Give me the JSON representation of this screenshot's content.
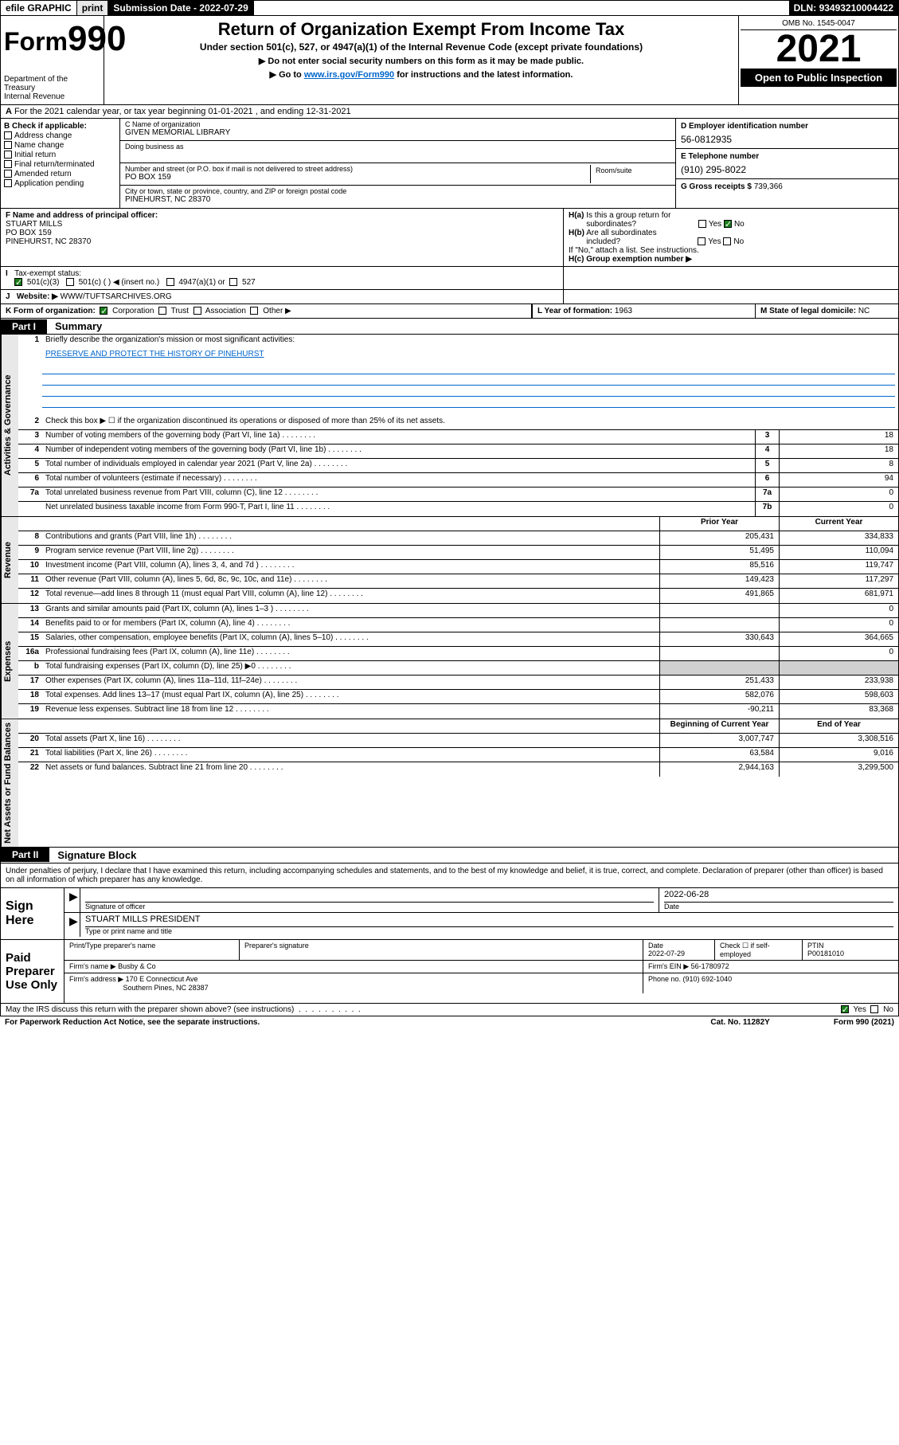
{
  "topbar": {
    "efile": "efile GRAPHIC",
    "print": "print",
    "sub_label": "Submission Date - ",
    "sub_date": "2022-07-29",
    "dln_label": "DLN: ",
    "dln": "93493210004422"
  },
  "header": {
    "form_label": "Form",
    "form_num": "990",
    "dept": "Department of the Treasury\nInternal Revenue Service",
    "title": "Return of Organization Exempt From Income Tax",
    "sub1": "Under section 501(c), 527, or 4947(a)(1) of the Internal Revenue Code (except private foundations)",
    "sub2": "▶ Do not enter social security numbers on this form as it may be made public.",
    "sub3_pre": "▶ Go to ",
    "sub3_link": "www.irs.gov/Form990",
    "sub3_post": " for instructions and the latest information.",
    "omb": "OMB No. 1545-0047",
    "year": "2021",
    "inspect": "Open to Public Inspection"
  },
  "row_a": {
    "text": "For the 2021 calendar year, or tax year beginning 01-01-2021   , and ending 12-31-2021",
    "prefix": "A"
  },
  "col_b": {
    "label": "B Check if applicable:",
    "items": [
      "Address change",
      "Name change",
      "Initial return",
      "Final return/terminated",
      "Amended return",
      "Application pending"
    ]
  },
  "col_c": {
    "name_label": "C Name of organization",
    "name": "GIVEN MEMORIAL LIBRARY",
    "dba_label": "Doing business as",
    "dba": "",
    "addr_label": "Number and street (or P.O. box if mail is not delivered to street address)",
    "room_label": "Room/suite",
    "addr": "PO BOX 159",
    "city_label": "City or town, state or province, country, and ZIP or foreign postal code",
    "city": "PINEHURST, NC  28370"
  },
  "col_d": {
    "d_label": "D Employer identification number",
    "d_val": "56-0812935",
    "e_label": "E Telephone number",
    "e_val": "(910) 295-8022",
    "g_label": "G Gross receipts $ ",
    "g_val": "739,366"
  },
  "row_f": {
    "f_label": "F Name and address of principal officer:",
    "f_name": "STUART MILLS",
    "f_addr": "PO BOX 159",
    "f_city": "PINEHURST, NC  28370",
    "ha_label": "H(a)  Is this a group return for subordinates?",
    "ha_yes": "Yes",
    "ha_no": "No",
    "hb_label": "H(b)  Are all subordinates included?",
    "hb_yes": "Yes",
    "hb_no": "No",
    "hb_note": "If \"No,\" attach a list. See instructions.",
    "hc_label": "H(c)  Group exemption number ▶"
  },
  "row_i": {
    "label": "Tax-exempt status:",
    "opt1": "501(c)(3)",
    "opt2": "501(c) (  ) ◀ (insert no.)",
    "opt3": "4947(a)(1) or",
    "opt4": "527"
  },
  "row_j": {
    "label": "Website: ▶",
    "val": "WWW/TUFTSARCHIVES.ORG"
  },
  "row_k": {
    "label": "K Form of organization:",
    "opts": [
      "Corporation",
      "Trust",
      "Association",
      "Other ▶"
    ],
    "l_label": "L Year of formation: ",
    "l_val": "1963",
    "m_label": "M State of legal domicile: ",
    "m_val": "NC"
  },
  "part1": {
    "tab": "Part I",
    "title": "Summary"
  },
  "summary": {
    "line1_label": "Briefly describe the organization's mission or most significant activities:",
    "line1_val": "PRESERVE AND PROTECT THE HISTORY OF PINEHURST",
    "line2": "Check this box ▶ ☐  if the organization discontinued its operations or disposed of more than 25% of its net assets.",
    "rows_gov": [
      {
        "n": "3",
        "d": "Number of voting members of the governing body (Part VI, line 1a)",
        "box": "3",
        "v": "18"
      },
      {
        "n": "4",
        "d": "Number of independent voting members of the governing body (Part VI, line 1b)",
        "box": "4",
        "v": "18"
      },
      {
        "n": "5",
        "d": "Total number of individuals employed in calendar year 2021 (Part V, line 2a)",
        "box": "5",
        "v": "8"
      },
      {
        "n": "6",
        "d": "Total number of volunteers (estimate if necessary)",
        "box": "6",
        "v": "94"
      },
      {
        "n": "7a",
        "d": "Total unrelated business revenue from Part VIII, column (C), line 12",
        "box": "7a",
        "v": "0"
      },
      {
        "n": "",
        "d": "Net unrelated business taxable income from Form 990-T, Part I, line 11",
        "box": "7b",
        "v": "0"
      }
    ],
    "col_headers": {
      "prior": "Prior Year",
      "current": "Current Year"
    },
    "rows_rev": [
      {
        "n": "8",
        "d": "Contributions and grants (Part VIII, line 1h)",
        "p": "205,431",
        "c": "334,833"
      },
      {
        "n": "9",
        "d": "Program service revenue (Part VIII, line 2g)",
        "p": "51,495",
        "c": "110,094"
      },
      {
        "n": "10",
        "d": "Investment income (Part VIII, column (A), lines 3, 4, and 7d )",
        "p": "85,516",
        "c": "119,747"
      },
      {
        "n": "11",
        "d": "Other revenue (Part VIII, column (A), lines 5, 6d, 8c, 9c, 10c, and 11e)",
        "p": "149,423",
        "c": "117,297"
      },
      {
        "n": "12",
        "d": "Total revenue—add lines 8 through 11 (must equal Part VIII, column (A), line 12)",
        "p": "491,865",
        "c": "681,971"
      }
    ],
    "rows_exp": [
      {
        "n": "13",
        "d": "Grants and similar amounts paid (Part IX, column (A), lines 1–3 )",
        "p": "",
        "c": "0"
      },
      {
        "n": "14",
        "d": "Benefits paid to or for members (Part IX, column (A), line 4)",
        "p": "",
        "c": "0"
      },
      {
        "n": "15",
        "d": "Salaries, other compensation, employee benefits (Part IX, column (A), lines 5–10)",
        "p": "330,643",
        "c": "364,665"
      },
      {
        "n": "16a",
        "d": "Professional fundraising fees (Part IX, column (A), line 11e)",
        "p": "",
        "c": "0"
      },
      {
        "n": "b",
        "d": "Total fundraising expenses (Part IX, column (D), line 25) ▶0",
        "p": "shade",
        "c": "shade"
      },
      {
        "n": "17",
        "d": "Other expenses (Part IX, column (A), lines 11a–11d, 11f–24e)",
        "p": "251,433",
        "c": "233,938"
      },
      {
        "n": "18",
        "d": "Total expenses. Add lines 13–17 (must equal Part IX, column (A), line 25)",
        "p": "582,076",
        "c": "598,603"
      },
      {
        "n": "19",
        "d": "Revenue less expenses. Subtract line 18 from line 12",
        "p": "-90,211",
        "c": "83,368"
      }
    ],
    "col_headers2": {
      "begin": "Beginning of Current Year",
      "end": "End of Year"
    },
    "rows_net": [
      {
        "n": "20",
        "d": "Total assets (Part X, line 16)",
        "p": "3,007,747",
        "c": "3,308,516"
      },
      {
        "n": "21",
        "d": "Total liabilities (Part X, line 26)",
        "p": "63,584",
        "c": "9,016"
      },
      {
        "n": "22",
        "d": "Net assets or fund balances. Subtract line 21 from line 20",
        "p": "2,944,163",
        "c": "3,299,500"
      }
    ]
  },
  "vtabs": {
    "gov": "Activities & Governance",
    "rev": "Revenue",
    "exp": "Expenses",
    "net": "Net Assets or Fund Balances"
  },
  "part2": {
    "tab": "Part II",
    "title": "Signature Block",
    "penalty": "Under penalties of perjury, I declare that I have examined this return, including accompanying schedules and statements, and to the best of my knowledge and belief, it is true, correct, and complete. Declaration of preparer (other than officer) is based on all information of which preparer has any knowledge."
  },
  "sign": {
    "label": "Sign Here",
    "sig_officer": "Signature of officer",
    "date_label": "Date",
    "date": "2022-06-28",
    "name": "STUART MILLS  PRESIDENT",
    "name_label": "Type or print name and title"
  },
  "preparer": {
    "label": "Paid Preparer Use Only",
    "h1": "Print/Type preparer's name",
    "h2": "Preparer's signature",
    "h3": "Date",
    "h3v": "2022-07-29",
    "h4": "Check ☐ if self-employed",
    "h5": "PTIN",
    "h5v": "P00181010",
    "firm_name_label": "Firm's name    ▶ ",
    "firm_name": "Busby & Co",
    "firm_ein_label": "Firm's EIN ▶ ",
    "firm_ein": "56-1780972",
    "firm_addr_label": "Firm's address ▶ ",
    "firm_addr": "170 E Connecticut Ave",
    "firm_addr2": "Southern Pines, NC  28387",
    "phone_label": "Phone no. ",
    "phone": "(910) 692-1040"
  },
  "footer": {
    "discuss": "May the IRS discuss this return with the preparer shown above? (see instructions)",
    "yes": "Yes",
    "no": "No",
    "paperwork": "For Paperwork Reduction Act Notice, see the separate instructions.",
    "cat": "Cat. No. 11282Y",
    "form": "Form 990 (2021)"
  }
}
